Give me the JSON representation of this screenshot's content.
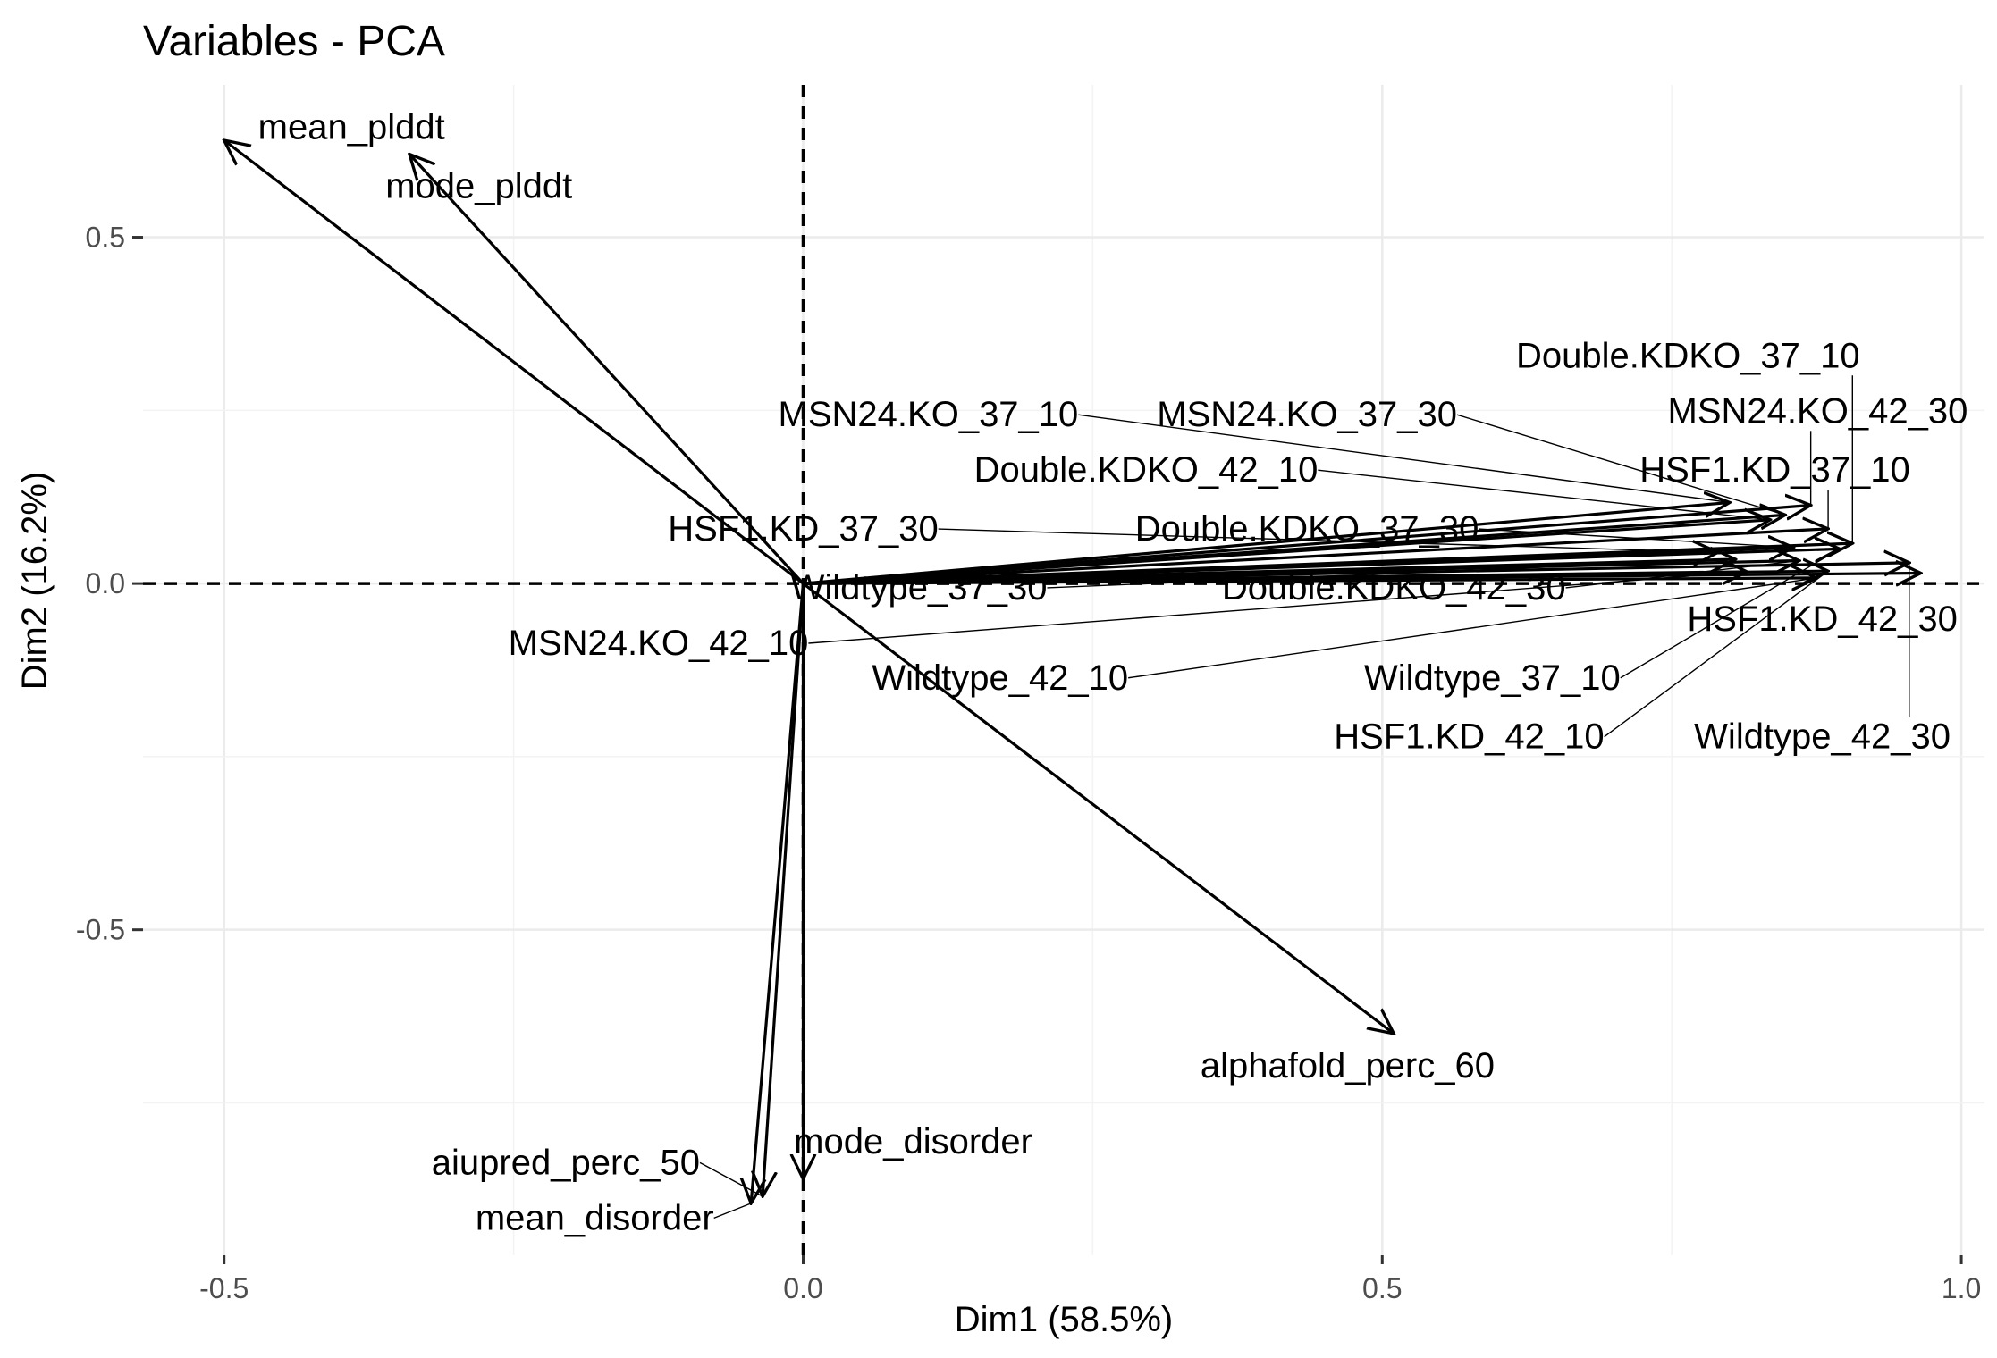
{
  "chart_data": {
    "type": "scatter",
    "subtype": "pca-variables-arrows",
    "title": "Variables - PCA",
    "xlabel": "Dim1 (58.5%)",
    "ylabel": "Dim2 (16.2%)",
    "xlim": [
      -0.57,
      1.02
    ],
    "ylim": [
      -0.97,
      0.72
    ],
    "x_ticks": [
      -0.5,
      0.0,
      0.5,
      1.0
    ],
    "x_tick_labels": [
      "-0.5",
      "0.0",
      "0.5",
      "1.0"
    ],
    "y_ticks": [
      -0.5,
      0.0,
      0.5
    ],
    "y_tick_labels": [
      "-0.5",
      "0.0",
      "0.5"
    ],
    "grid": true,
    "reference_lines": {
      "x": 0,
      "y": 0,
      "style": "dashed"
    },
    "variables": [
      {
        "name": "mean_plddt",
        "x": -0.5,
        "y": 0.64,
        "lx": -0.39,
        "ly": 0.66
      },
      {
        "name": "mode_plddt",
        "x": -0.34,
        "y": 0.62,
        "lx": -0.28,
        "ly": 0.575
      },
      {
        "name": "Double.KDKO_37_10",
        "x": 0.906,
        "y": 0.058,
        "lx": 0.764,
        "ly": 0.33
      },
      {
        "name": "MSN24.KO_37_10",
        "x": 0.8,
        "y": 0.117,
        "lx": 0.108,
        "ly": 0.245
      },
      {
        "name": "MSN24.KO_37_30",
        "x": 0.848,
        "y": 0.099,
        "lx": 0.435,
        "ly": 0.245
      },
      {
        "name": "MSN24.KO_42_30",
        "x": 0.87,
        "y": 0.113,
        "lx": 0.876,
        "ly": 0.25
      },
      {
        "name": "Double.KDKO_42_10",
        "x": 0.835,
        "y": 0.092,
        "lx": 0.296,
        "ly": 0.165
      },
      {
        "name": "HSF1.KD_37_10",
        "x": 0.885,
        "y": 0.079,
        "lx": 0.839,
        "ly": 0.165
      },
      {
        "name": "HSF1.KD_37_30",
        "x": 0.79,
        "y": 0.045,
        "lx": 0.0,
        "ly": 0.08
      },
      {
        "name": "Double.KDKO_37_30",
        "x": 0.855,
        "y": 0.052,
        "lx": 0.435,
        "ly": 0.08
      },
      {
        "name": "Wildtype_37_30",
        "x": 0.805,
        "y": 0.035,
        "lx": 0.1,
        "ly": -0.005
      },
      {
        "name": "Double.KDKO_42_30",
        "x": 0.86,
        "y": 0.033,
        "lx": 0.51,
        "ly": -0.005
      },
      {
        "name": "MSN24.KO_42_10",
        "x": 0.815,
        "y": 0.017,
        "lx": -0.125,
        "ly": -0.085
      },
      {
        "name": "HSF1.KD_42_30",
        "x": 0.965,
        "y": 0.015,
        "lx": 0.88,
        "ly": -0.05
      },
      {
        "name": "Wildtype_42_10",
        "x": 0.875,
        "y": 0.008,
        "lx": 0.17,
        "ly": -0.135
      },
      {
        "name": "Wildtype_37_10",
        "x": 0.895,
        "y": 0.05,
        "lx": 0.595,
        "ly": -0.135
      },
      {
        "name": "HSF1.KD_42_10",
        "x": 0.885,
        "y": 0.018,
        "lx": 0.575,
        "ly": -0.22
      },
      {
        "name": "Wildtype_42_30",
        "x": 0.955,
        "y": 0.03,
        "lx": 0.88,
        "ly": -0.22
      },
      {
        "name": "alphafold_perc_60",
        "x": 0.51,
        "y": -0.65,
        "lx": 0.47,
        "ly": -0.695
      },
      {
        "name": "mode_disorder",
        "x": 0.0,
        "y": -0.86,
        "lx": 0.095,
        "ly": -0.805
      },
      {
        "name": "aiupred_perc_50",
        "x": -0.035,
        "y": -0.885,
        "lx": -0.205,
        "ly": -0.835
      },
      {
        "name": "mean_disorder",
        "x": -0.045,
        "y": -0.895,
        "lx": -0.18,
        "ly": -0.915
      }
    ]
  }
}
